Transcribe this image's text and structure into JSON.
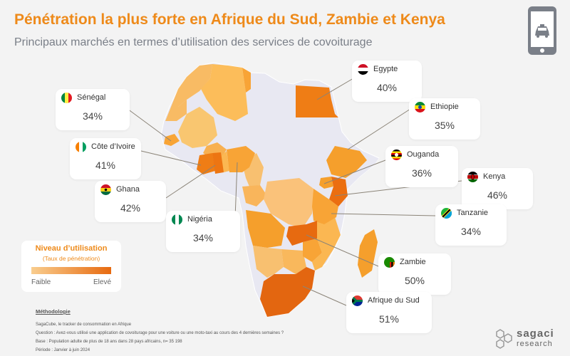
{
  "title": "Pénétration la plus forte en Afrique du Sud, Zambie et Kenya",
  "subtitle": "Principaux marchés en termes d’utilisation des services de covoiturage",
  "header_icon": "phone-taxi-icon",
  "legend": {
    "title": "Niveau d’utilisation",
    "subtitle": "(Taux de pénétration)",
    "low": "Faible",
    "high": "Elevé",
    "color_low": "#f9cd8e",
    "color_high": "#e76a10"
  },
  "countries": {
    "senegal": {
      "name": "Sénégal",
      "value": "34%",
      "penetration": 34
    },
    "cote": {
      "name": "Côte d’Ivoire",
      "value": "41%",
      "penetration": 41
    },
    "ghana": {
      "name": "Ghana",
      "value": "42%",
      "penetration": 42
    },
    "nigeria": {
      "name": "Nigéria",
      "value": "34%",
      "penetration": 34
    },
    "egypte": {
      "name": "Egypte",
      "value": "40%",
      "penetration": 40
    },
    "ethiopie": {
      "name": "Ethiopie",
      "value": "35%",
      "penetration": 35
    },
    "ouganda": {
      "name": "Ouganda",
      "value": "36%",
      "penetration": 36
    },
    "kenya": {
      "name": "Kenya",
      "value": "46%",
      "penetration": 46
    },
    "tanzanie": {
      "name": "Tanzanie",
      "value": "34%",
      "penetration": 34
    },
    "zambie": {
      "name": "Zambie",
      "value": "50%",
      "penetration": 50
    },
    "afriquesud": {
      "name": "Afrique du Sud",
      "value": "51%",
      "penetration": 51
    }
  },
  "methodology": {
    "title": "Méthodologie",
    "lines": [
      "SagaCube, le tracker de consommation en Afrique",
      "Question : Avez-vous utilisé une application de covoiturage pour une voiture ou une moto-taxi au cours des 4 dernières semaines ?",
      "Base : Population adulte de plus de 18 ans dans 28 pays africains, n= 35 198",
      "Période : Janvier à juin 2024"
    ]
  },
  "logo": {
    "brand": "sagaci",
    "sub": "research"
  }
}
